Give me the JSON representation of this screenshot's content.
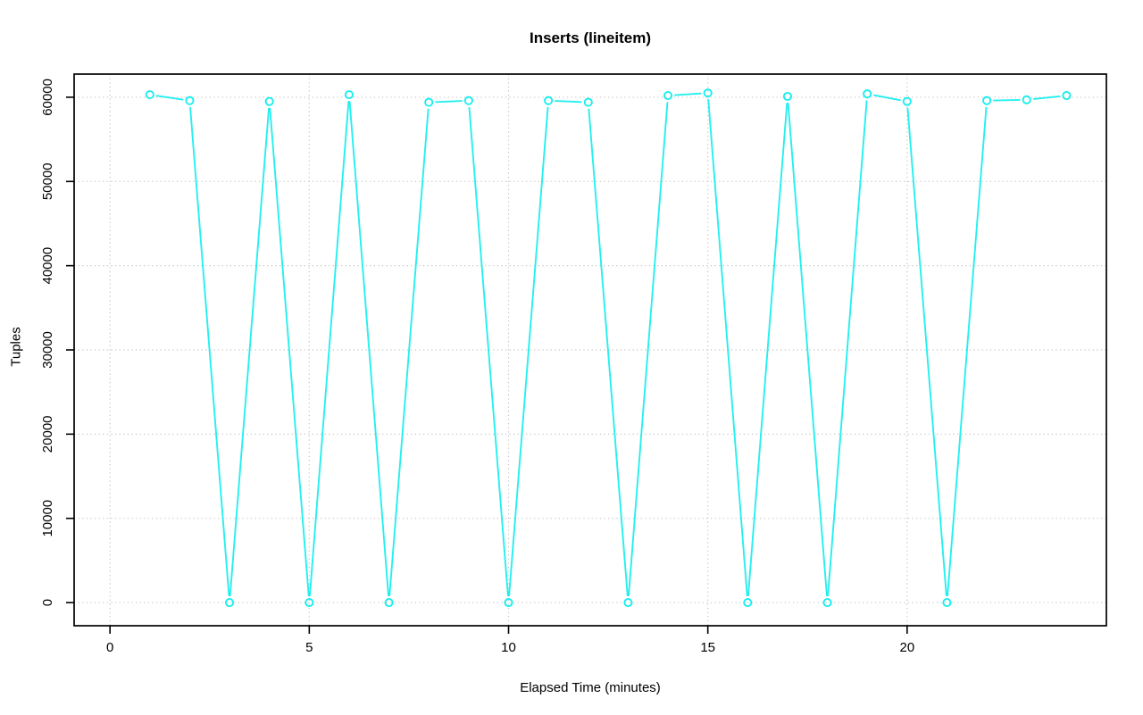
{
  "chart_data": {
    "type": "line",
    "title": "Inserts (lineitem)",
    "xlabel": "Elapsed Time (minutes)",
    "ylabel": "Tuples",
    "series": [
      {
        "name": "inserts-lineitem",
        "color": "#00ecec",
        "marker": "open-circle",
        "x": [
          1,
          2,
          3,
          4,
          5,
          6,
          7,
          8,
          9,
          10,
          11,
          12,
          13,
          14,
          15,
          16,
          17,
          18,
          19,
          20,
          21,
          22,
          23,
          24
        ],
        "y": [
          60300,
          59600,
          0,
          59500,
          0,
          60300,
          0,
          59400,
          59600,
          0,
          59600,
          59400,
          0,
          60200,
          60500,
          0,
          60100,
          0,
          60400,
          59500,
          0,
          59600,
          59700,
          60200
        ]
      }
    ],
    "x_ticks": [
      0,
      5,
      10,
      15,
      20
    ],
    "y_ticks": [
      0,
      10000,
      20000,
      30000,
      40000,
      50000,
      60000
    ],
    "x_tick_labels": [
      "0",
      "5",
      "10",
      "15",
      "20"
    ],
    "y_tick_labels": [
      "0",
      "10000",
      "20000",
      "30000",
      "40000",
      "50000",
      "60000"
    ],
    "xlim": [
      -0.9,
      25.0
    ],
    "ylim": [
      -2750,
      62750
    ],
    "grid": "dotted",
    "grid_color": "#c3c3c3",
    "axis_color": "#000000",
    "background": "#ffffff",
    "legend_position": "none"
  }
}
